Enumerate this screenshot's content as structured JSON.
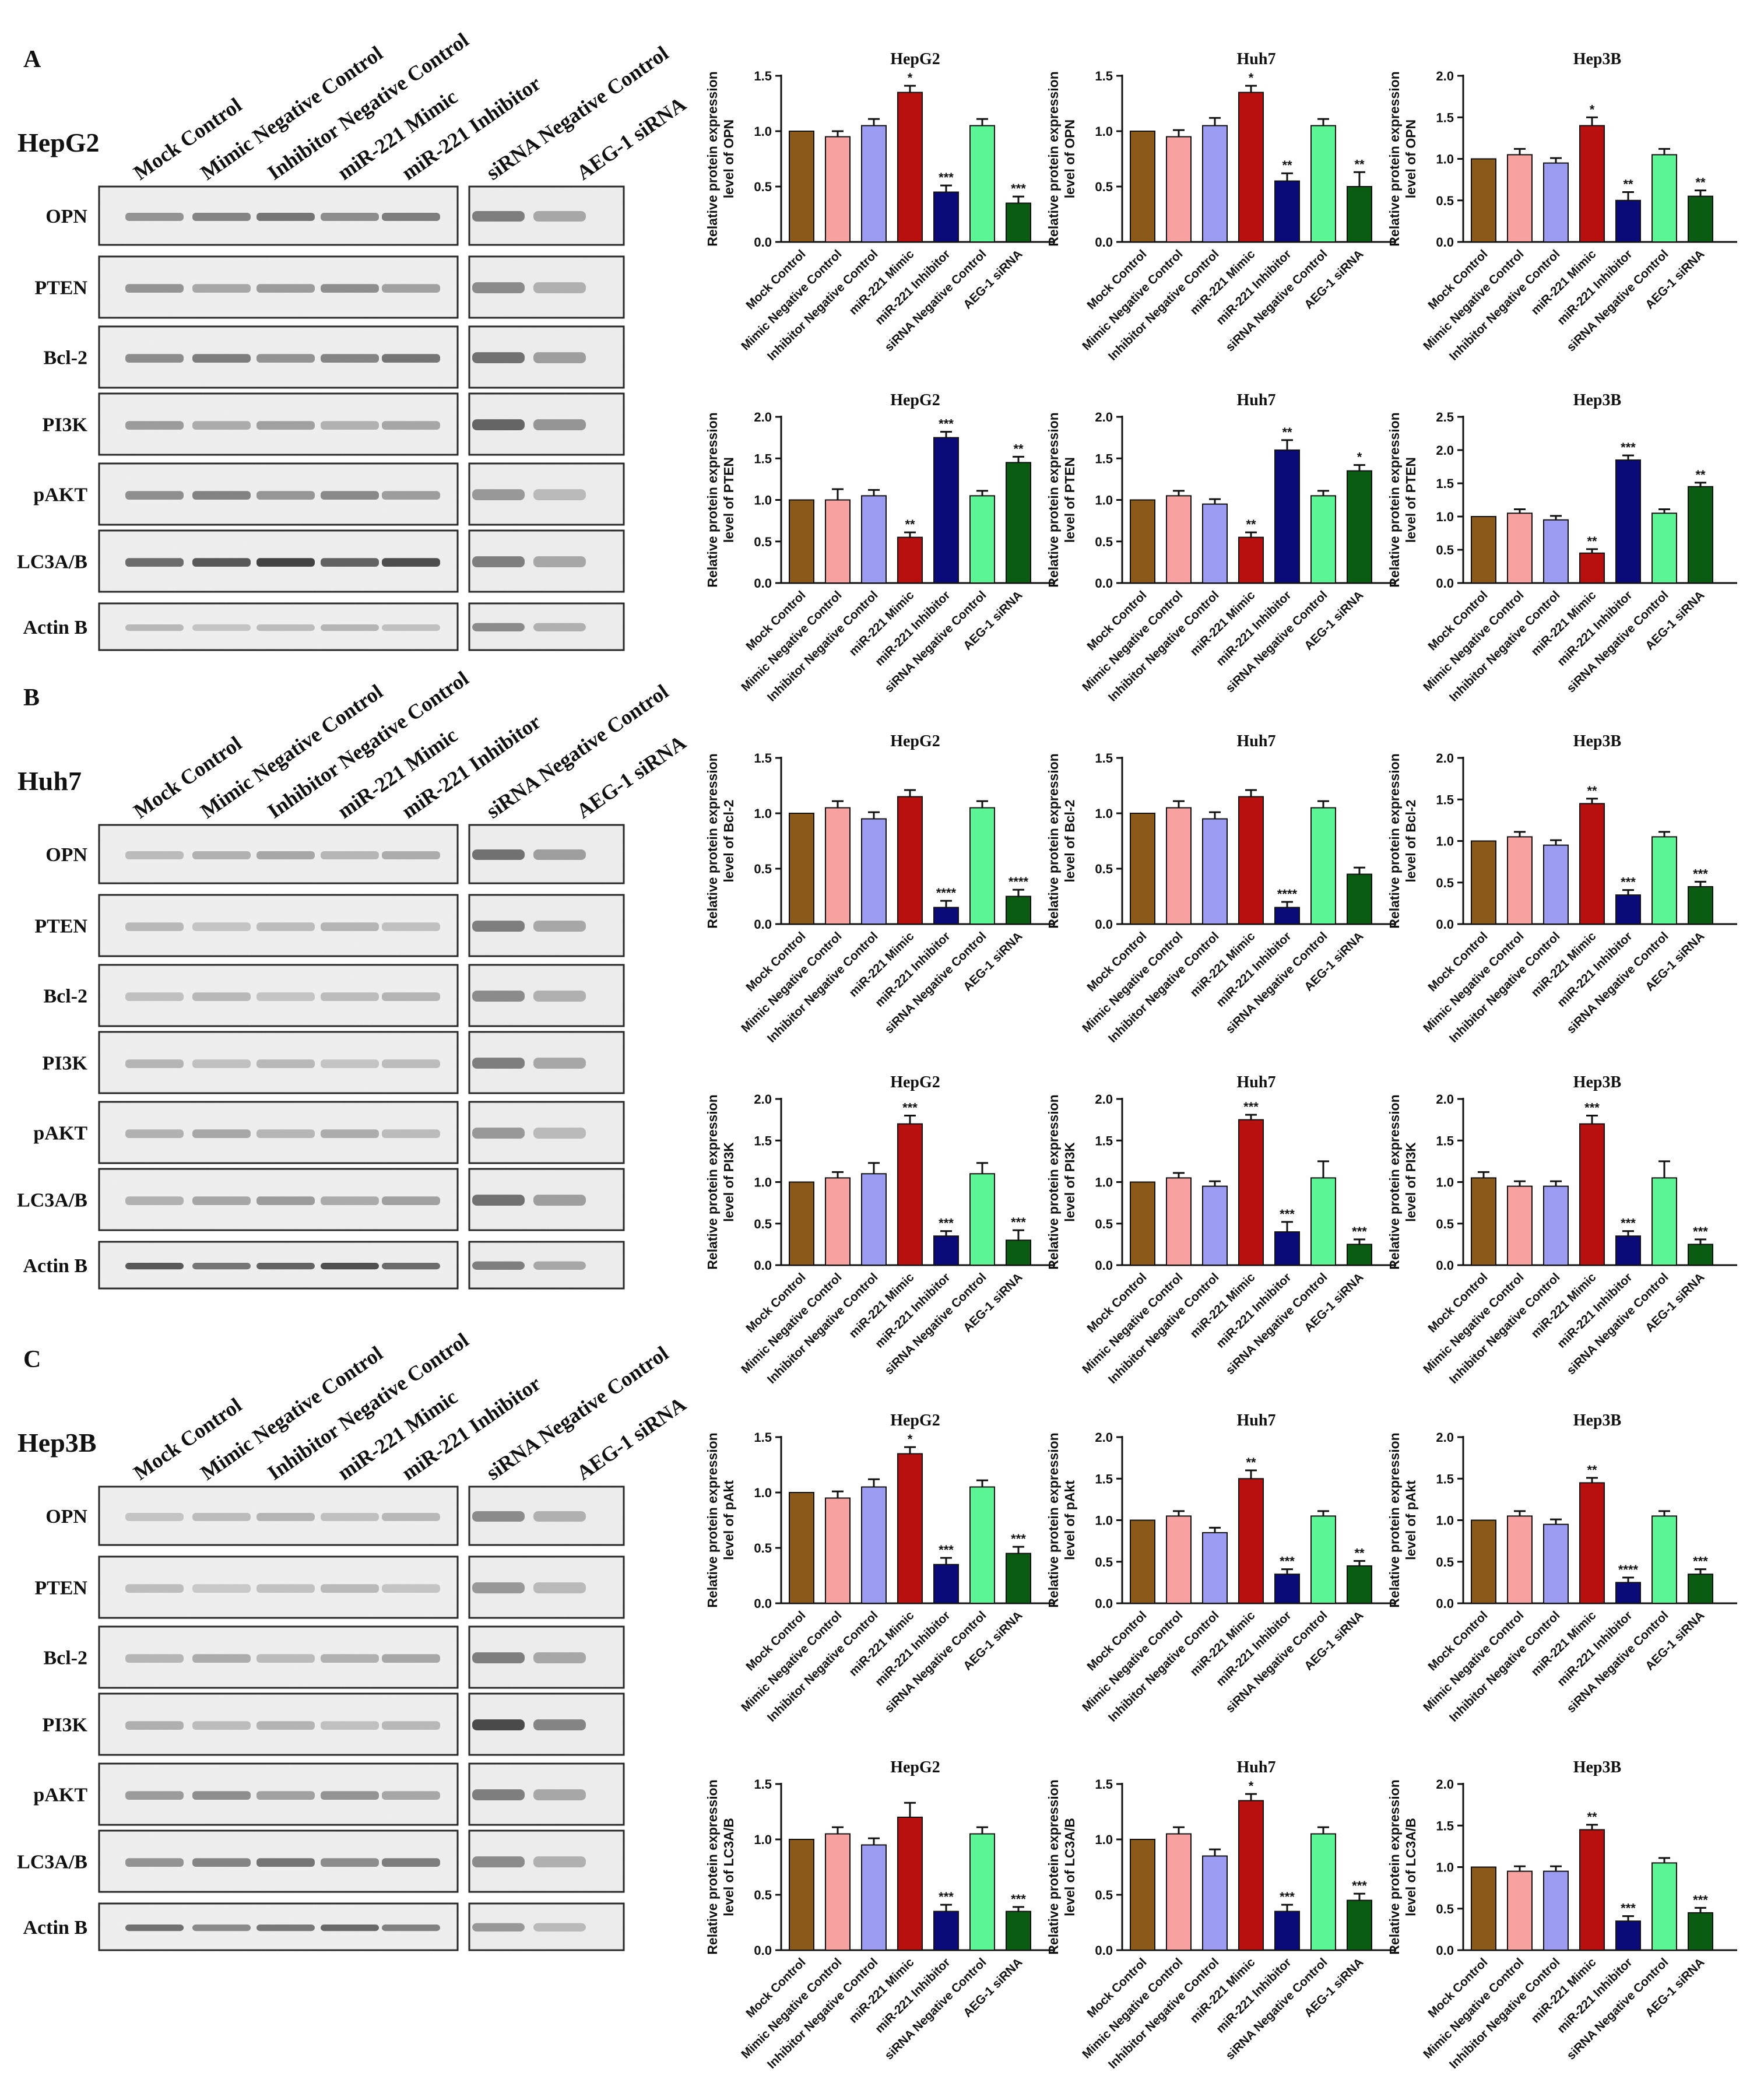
{
  "colors": [
    "#8B5A1B",
    "#F7A1A1",
    "#9B9BF2",
    "#B80F0F",
    "#0A0A78",
    "#5CF596",
    "#0A5C12"
  ],
  "conditions": [
    "Mock Control",
    "Mimic Negative Control",
    "Inhibitor Negative Control",
    "miR-221 Mimic",
    "miR-221 Inhibitor",
    "siRNA Negative Control",
    "AEG-1 siRNA"
  ],
  "blots": [
    {
      "letter": "A",
      "cell_line": "HepG2",
      "markers": [
        "OPN",
        "PTEN",
        "Bcl-2",
        "PI3K",
        "pAKT",
        "LC3A/B",
        "Actin B"
      ]
    },
    {
      "letter": "B",
      "cell_line": "Huh7",
      "markers": [
        "OPN",
        "PTEN",
        "Bcl-2",
        "PI3K",
        "pAKT",
        "LC3A/B",
        "Actin B"
      ]
    },
    {
      "letter": "C",
      "cell_line": "Hep3B",
      "markers": [
        "OPN",
        "PTEN",
        "Bcl-2",
        "PI3K",
        "pAKT",
        "LC3A/B",
        "Actin B"
      ]
    }
  ],
  "chart_data": [
    {
      "type": "bar",
      "title": "HepG2",
      "ylabel_line1": "Relative protein expression",
      "ylabel_line2": "level of OPN",
      "ylim": [
        0,
        1.5
      ],
      "yticks": [
        "0.0",
        "0.5",
        "1.0",
        "1.5"
      ],
      "values": [
        1.0,
        0.95,
        1.05,
        1.35,
        0.45,
        1.05,
        0.35
      ],
      "errors": [
        0,
        0.05,
        0.06,
        0.06,
        0.06,
        0.06,
        0.06
      ],
      "annotations": [
        "",
        "",
        "",
        "*",
        "***",
        "",
        "***"
      ]
    },
    {
      "type": "bar",
      "title": "Huh7",
      "ylabel_line1": "Relative protein expression",
      "ylabel_line2": "level of OPN",
      "ylim": [
        0,
        1.5
      ],
      "yticks": [
        "0.0",
        "0.5",
        "1.0",
        "1.5"
      ],
      "values": [
        1.0,
        0.95,
        1.05,
        1.35,
        0.55,
        1.05,
        0.5
      ],
      "errors": [
        0,
        0.06,
        0.07,
        0.06,
        0.07,
        0.06,
        0.13
      ],
      "annotations": [
        "",
        "",
        "",
        "*",
        "**",
        "",
        "**"
      ]
    },
    {
      "type": "bar",
      "title": "Hep3B",
      "ylabel_line1": "Relative protein expression",
      "ylabel_line2": "level of OPN",
      "ylim": [
        0,
        2.0
      ],
      "yticks": [
        "0.0",
        "0.5",
        "1.0",
        "1.5",
        "2.0"
      ],
      "values": [
        1.0,
        1.05,
        0.95,
        1.4,
        0.5,
        1.05,
        0.55
      ],
      "errors": [
        0,
        0.07,
        0.06,
        0.1,
        0.1,
        0.07,
        0.07
      ],
      "annotations": [
        "",
        "",
        "",
        "*",
        "**",
        "",
        "**"
      ]
    },
    {
      "type": "bar",
      "title": "HepG2",
      "ylabel_line1": "Relative protein expression",
      "ylabel_line2": "level of PTEN",
      "ylim": [
        0,
        2.0
      ],
      "yticks": [
        "0.0",
        "0.5",
        "1.0",
        "1.5",
        "2.0"
      ],
      "values": [
        1.0,
        1.0,
        1.05,
        0.55,
        1.75,
        1.05,
        1.45
      ],
      "errors": [
        0,
        0.13,
        0.07,
        0.06,
        0.07,
        0.06,
        0.07
      ],
      "annotations": [
        "",
        "",
        "",
        "**",
        "***",
        "",
        "**"
      ]
    },
    {
      "type": "bar",
      "title": "Huh7",
      "ylabel_line1": "Relative protein expression",
      "ylabel_line2": "level of PTEN",
      "ylim": [
        0,
        2.0
      ],
      "yticks": [
        "0.0",
        "0.5",
        "1.0",
        "1.5",
        "2.0"
      ],
      "values": [
        1.0,
        1.05,
        0.95,
        0.55,
        1.6,
        1.05,
        1.35
      ],
      "errors": [
        0,
        0.06,
        0.06,
        0.06,
        0.12,
        0.06,
        0.07
      ],
      "annotations": [
        "",
        "",
        "",
        "**",
        "**",
        "",
        "*"
      ]
    },
    {
      "type": "bar",
      "title": "Hep3B",
      "ylabel_line1": "Relative protein expression",
      "ylabel_line2": "level of PTEN",
      "ylim": [
        0,
        2.5
      ],
      "yticks": [
        "0.0",
        "0.5",
        "1.0",
        "1.5",
        "2.0",
        "2.5"
      ],
      "values": [
        1.0,
        1.05,
        0.95,
        0.45,
        1.85,
        1.05,
        1.45
      ],
      "errors": [
        0,
        0.06,
        0.06,
        0.06,
        0.07,
        0.06,
        0.06
      ],
      "annotations": [
        "",
        "",
        "",
        "**",
        "***",
        "",
        "**"
      ]
    },
    {
      "type": "bar",
      "title": "HepG2",
      "ylabel_line1": "Relative protein expression",
      "ylabel_line2": "level of Bcl-2",
      "ylim": [
        0,
        1.5
      ],
      "yticks": [
        "0.0",
        "0.5",
        "1.0",
        "1.5"
      ],
      "values": [
        1.0,
        1.05,
        0.95,
        1.15,
        0.15,
        1.05,
        0.25
      ],
      "errors": [
        0,
        0.06,
        0.06,
        0.06,
        0.06,
        0.06,
        0.06
      ],
      "annotations": [
        "",
        "",
        "",
        "",
        "****",
        "",
        "****"
      ]
    },
    {
      "type": "bar",
      "title": "Huh7",
      "ylabel_line1": "Relative protein expression",
      "ylabel_line2": "level of Bcl-2",
      "ylim": [
        0,
        1.5
      ],
      "yticks": [
        "0.0",
        "0.5",
        "1.0",
        "1.5"
      ],
      "values": [
        1.0,
        1.05,
        0.95,
        1.15,
        0.15,
        1.05,
        0.45
      ],
      "errors": [
        0,
        0.06,
        0.06,
        0.06,
        0.05,
        0.06,
        0.06
      ],
      "annotations": [
        "",
        "",
        "",
        "",
        "****",
        "",
        ""
      ]
    },
    {
      "type": "bar",
      "title": "Hep3B",
      "ylabel_line1": "Relative protein expression",
      "ylabel_line2": "level of Bcl-2",
      "ylim": [
        0,
        2.0
      ],
      "yticks": [
        "0.0",
        "0.5",
        "1.0",
        "1.5",
        "2.0"
      ],
      "values": [
        1.0,
        1.05,
        0.95,
        1.45,
        0.35,
        1.05,
        0.45
      ],
      "errors": [
        0,
        0.06,
        0.06,
        0.06,
        0.06,
        0.06,
        0.06
      ],
      "annotations": [
        "",
        "",
        "",
        "**",
        "***",
        "",
        "***"
      ]
    },
    {
      "type": "bar",
      "title": "HepG2",
      "ylabel_line1": "Relative protein expression",
      "ylabel_line2": "level of PI3K",
      "ylim": [
        0,
        2.0
      ],
      "yticks": [
        "0.0",
        "0.5",
        "1.0",
        "1.5",
        "2.0"
      ],
      "values": [
        1.0,
        1.05,
        1.1,
        1.7,
        0.35,
        1.1,
        0.3
      ],
      "errors": [
        0,
        0.07,
        0.13,
        0.1,
        0.06,
        0.13,
        0.12
      ],
      "annotations": [
        "",
        "",
        "",
        "***",
        "***",
        "",
        "***"
      ]
    },
    {
      "type": "bar",
      "title": "Huh7",
      "ylabel_line1": "Relative protein expression",
      "ylabel_line2": "level of PI3K",
      "ylim": [
        0,
        2.0
      ],
      "yticks": [
        "0.0",
        "0.5",
        "1.0",
        "1.5",
        "2.0"
      ],
      "values": [
        1.0,
        1.05,
        0.95,
        1.75,
        0.4,
        1.05,
        0.25
      ],
      "errors": [
        0,
        0.06,
        0.06,
        0.06,
        0.12,
        0.2,
        0.06
      ],
      "annotations": [
        "",
        "",
        "",
        "***",
        "***",
        "",
        "***"
      ]
    },
    {
      "type": "bar",
      "title": "Hep3B",
      "ylabel_line1": "Relative protein expression",
      "ylabel_line2": "level of PI3K",
      "ylim": [
        0,
        2.0
      ],
      "yticks": [
        "0.0",
        "0.5",
        "1.0",
        "1.5",
        "2.0"
      ],
      "values": [
        1.05,
        0.95,
        0.95,
        1.7,
        0.35,
        1.05,
        0.25
      ],
      "errors": [
        0.07,
        0.06,
        0.06,
        0.1,
        0.06,
        0.2,
        0.06
      ],
      "annotations": [
        "",
        "",
        "",
        "***",
        "***",
        "",
        "***"
      ]
    },
    {
      "type": "bar",
      "title": "HepG2",
      "ylabel_line1": "Relative protein expression",
      "ylabel_line2": "level of pAkt",
      "ylim": [
        0,
        1.5
      ],
      "yticks": [
        "0.0",
        "0.5",
        "1.0",
        "1.5"
      ],
      "values": [
        1.0,
        0.95,
        1.05,
        1.35,
        0.35,
        1.05,
        0.45
      ],
      "errors": [
        0,
        0.06,
        0.07,
        0.06,
        0.06,
        0.06,
        0.06
      ],
      "annotations": [
        "",
        "",
        "",
        "*",
        "***",
        "",
        "***"
      ]
    },
    {
      "type": "bar",
      "title": "Huh7",
      "ylabel_line1": "Relative protein expression",
      "ylabel_line2": "level of pAkt",
      "ylim": [
        0,
        2.0
      ],
      "yticks": [
        "0.0",
        "0.5",
        "1.0",
        "1.5",
        "2.0"
      ],
      "values": [
        1.0,
        1.05,
        0.85,
        1.5,
        0.35,
        1.05,
        0.45
      ],
      "errors": [
        0,
        0.06,
        0.06,
        0.1,
        0.06,
        0.06,
        0.06
      ],
      "annotations": [
        "",
        "",
        "",
        "**",
        "***",
        "",
        "**"
      ]
    },
    {
      "type": "bar",
      "title": "Hep3B",
      "ylabel_line1": "Relative protein expression",
      "ylabel_line2": "level of pAkt",
      "ylim": [
        0,
        2.0
      ],
      "yticks": [
        "0.0",
        "0.5",
        "1.0",
        "1.5",
        "2.0"
      ],
      "values": [
        1.0,
        1.05,
        0.95,
        1.45,
        0.25,
        1.05,
        0.35
      ],
      "errors": [
        0,
        0.06,
        0.06,
        0.06,
        0.06,
        0.06,
        0.06
      ],
      "annotations": [
        "",
        "",
        "",
        "**",
        "****",
        "",
        "***"
      ]
    },
    {
      "type": "bar",
      "title": "HepG2",
      "ylabel_line1": "Relative protein expression",
      "ylabel_line2": "level of LC3A/B",
      "ylim": [
        0,
        1.5
      ],
      "yticks": [
        "0.0",
        "0.5",
        "1.0",
        "1.5"
      ],
      "values": [
        1.0,
        1.05,
        0.95,
        1.2,
        0.35,
        1.05,
        0.35
      ],
      "errors": [
        0,
        0.06,
        0.06,
        0.13,
        0.06,
        0.06,
        0.04
      ],
      "annotations": [
        "",
        "",
        "",
        "",
        "***",
        "",
        "***"
      ]
    },
    {
      "type": "bar",
      "title": "Huh7",
      "ylabel_line1": "Relative protein expression",
      "ylabel_line2": "level of LC3A/B",
      "ylim": [
        0,
        1.5
      ],
      "yticks": [
        "0.0",
        "0.5",
        "1.0",
        "1.5"
      ],
      "values": [
        1.0,
        1.05,
        0.85,
        1.35,
        0.35,
        1.05,
        0.45
      ],
      "errors": [
        0,
        0.06,
        0.06,
        0.06,
        0.06,
        0.06,
        0.06
      ],
      "annotations": [
        "",
        "",
        "",
        "*",
        "***",
        "",
        "***"
      ]
    },
    {
      "type": "bar",
      "title": "Hep3B",
      "ylabel_line1": "Relative protein expression",
      "ylabel_line2": "level of LC3A/B",
      "ylim": [
        0,
        2.0
      ],
      "yticks": [
        "0.0",
        "0.5",
        "1.0",
        "1.5",
        "2.0"
      ],
      "values": [
        1.0,
        0.95,
        0.95,
        1.45,
        0.35,
        1.05,
        0.45
      ],
      "errors": [
        0,
        0.06,
        0.06,
        0.06,
        0.06,
        0.06,
        0.06
      ],
      "annotations": [
        "",
        "",
        "",
        "**",
        "***",
        "",
        "***"
      ]
    }
  ]
}
